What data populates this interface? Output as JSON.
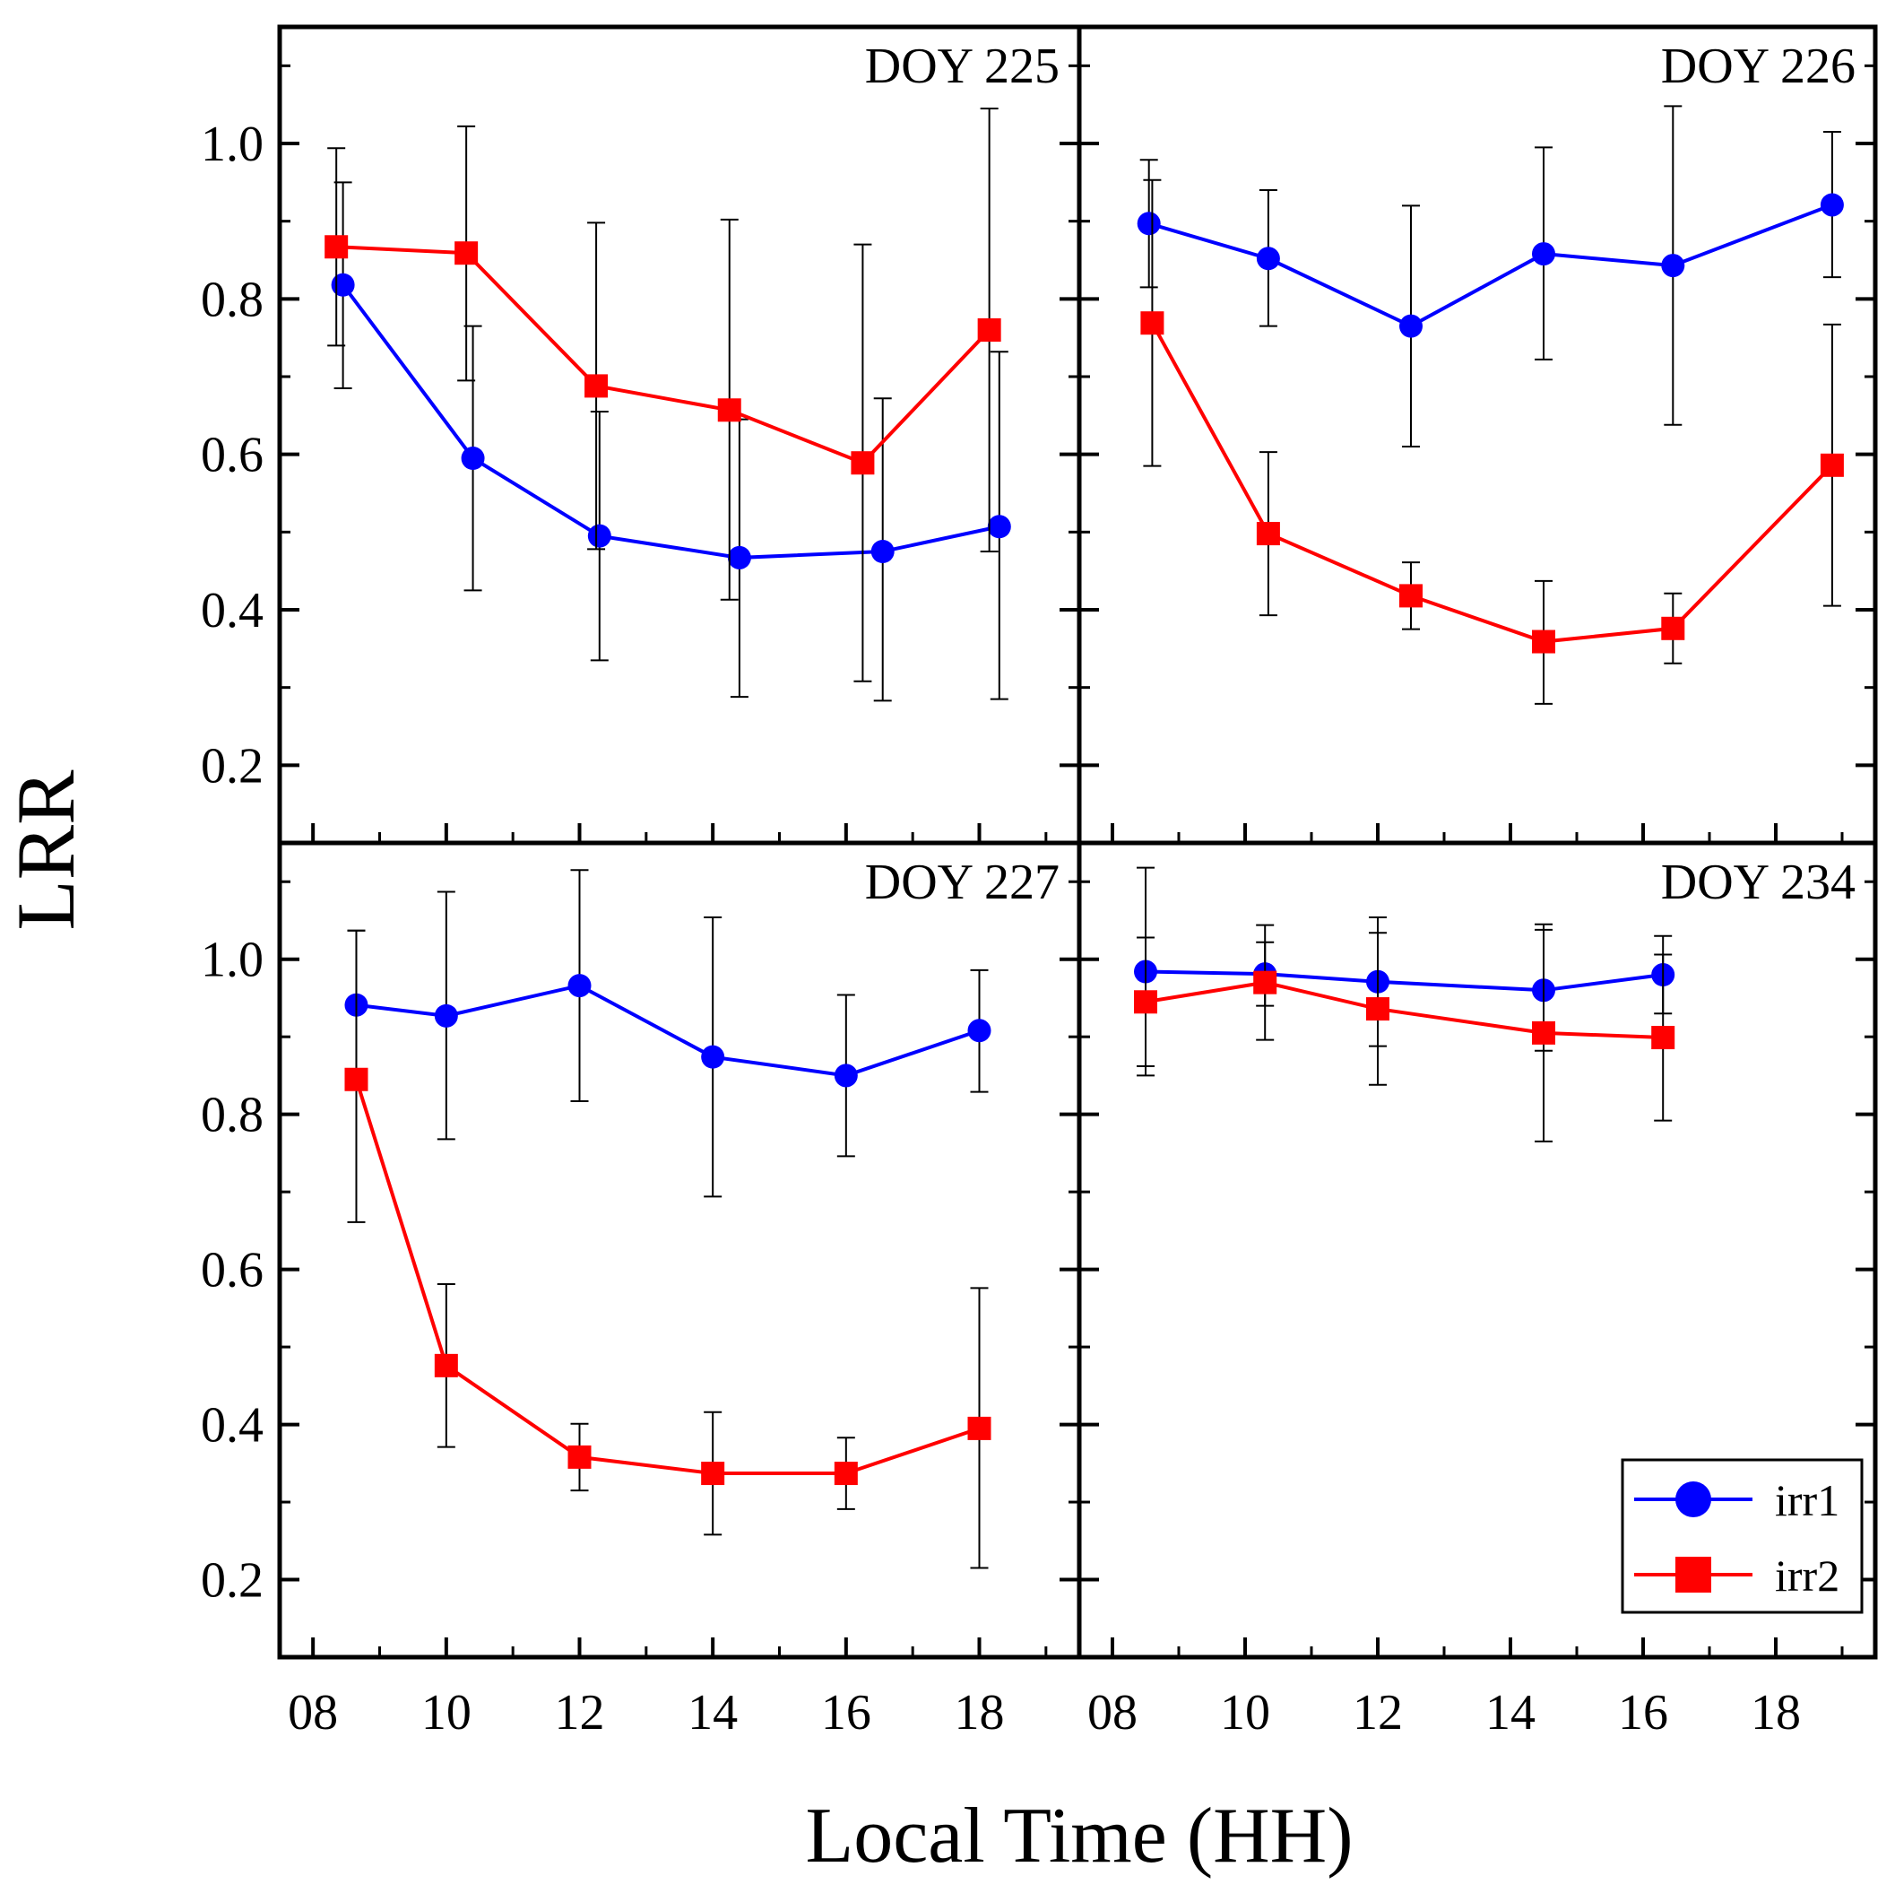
{
  "chart_data": {
    "type": "line",
    "ylabel": "LRR",
    "xlabel": "Local Time (HH)",
    "ylim": [
      0.1,
      1.15
    ],
    "xlim": [
      7.5,
      19.5
    ],
    "y_ticks": [
      {
        "v": 0.2,
        "label": "0.2"
      },
      {
        "v": 0.4,
        "label": "0.4"
      },
      {
        "v": 0.6,
        "label": "0.6"
      },
      {
        "v": 0.8,
        "label": "0.8"
      },
      {
        "v": 1.0,
        "label": "1.0"
      }
    ],
    "x_ticks": [
      {
        "v": 8,
        "label": "08"
      },
      {
        "v": 10,
        "label": "10"
      },
      {
        "v": 12,
        "label": "12"
      },
      {
        "v": 14,
        "label": "14"
      },
      {
        "v": 16,
        "label": "16"
      },
      {
        "v": 18,
        "label": "18"
      }
    ],
    "legend": {
      "position": "bottom-right of DOY 234 panel",
      "entries": [
        {
          "label": "irr1",
          "marker": "circle",
          "color": "#0000ff"
        },
        {
          "label": "irr2",
          "marker": "square",
          "color": "#ff0000"
        }
      ]
    },
    "panels": [
      {
        "title": "DOY 225",
        "series": [
          {
            "name": "irr1",
            "color": "#0000ff",
            "marker": "circle",
            "x": [
              8.45,
              10.4,
              12.3,
              14.4,
              16.55,
              18.3
            ],
            "y": [
              0.818,
              0.595,
              0.495,
              0.467,
              0.475,
              0.507
            ],
            "err_low": [
              0.685,
              0.425,
              0.335,
              0.288,
              0.283,
              0.285
            ],
            "err_high": [
              0.95,
              0.765,
              0.655,
              0.645,
              0.672,
              0.732
            ]
          },
          {
            "name": "irr2",
            "color": "#ff0000",
            "marker": "square",
            "x": [
              8.35,
              10.3,
              12.25,
              14.25,
              16.25,
              18.15
            ],
            "y": [
              0.867,
              0.859,
              0.688,
              0.657,
              0.589,
              0.76
            ],
            "err_low": [
              0.74,
              0.695,
              0.478,
              0.413,
              0.308,
              0.475
            ],
            "err_high": [
              0.994,
              1.022,
              0.898,
              0.902,
              0.87,
              1.045
            ]
          }
        ]
      },
      {
        "title": "DOY 226",
        "series": [
          {
            "name": "irr1",
            "color": "#0000ff",
            "marker": "circle",
            "x": [
              8.55,
              10.35,
              12.5,
              14.5,
              16.45,
              18.85
            ],
            "y": [
              0.897,
              0.852,
              0.765,
              0.858,
              0.843,
              0.921
            ],
            "err_low": [
              0.815,
              0.765,
              0.61,
              0.722,
              0.638,
              0.828
            ],
            "err_high": [
              0.979,
              0.94,
              0.92,
              0.995,
              1.048,
              1.015
            ]
          },
          {
            "name": "irr2",
            "color": "#ff0000",
            "marker": "square",
            "x": [
              8.6,
              10.35,
              12.5,
              14.5,
              16.45,
              18.85
            ],
            "y": [
              0.769,
              0.498,
              0.418,
              0.359,
              0.376,
              0.586
            ],
            "err_low": [
              0.585,
              0.393,
              0.375,
              0.279,
              0.331,
              0.405
            ],
            "err_high": [
              0.953,
              0.603,
              0.461,
              0.437,
              0.421,
              0.767
            ]
          }
        ]
      },
      {
        "title": "DOY 227",
        "series": [
          {
            "name": "irr1",
            "color": "#0000ff",
            "marker": "circle",
            "x": [
              8.65,
              10.0,
              12.0,
              14.0,
              16.0,
              18.0
            ],
            "y": [
              0.941,
              0.927,
              0.966,
              0.874,
              0.85,
              0.908
            ],
            "err_low": [
              0.845,
              0.768,
              0.817,
              0.694,
              0.746,
              0.829
            ],
            "err_high": [
              1.037,
              1.087,
              1.115,
              1.054,
              0.954,
              0.986
            ]
          },
          {
            "name": "irr2",
            "color": "#ff0000",
            "marker": "square",
            "x": [
              8.65,
              10.0,
              12.0,
              14.0,
              16.0,
              18.0
            ],
            "y": [
              0.845,
              0.476,
              0.358,
              0.337,
              0.337,
              0.395
            ],
            "err_low": [
              0.661,
              0.371,
              0.315,
              0.258,
              0.291,
              0.215
            ],
            "err_high": [
              1.037,
              0.581,
              0.401,
              0.416,
              0.383,
              0.576
            ]
          }
        ]
      },
      {
        "title": "DOY 234",
        "series": [
          {
            "name": "irr1",
            "color": "#0000ff",
            "marker": "circle",
            "x": [
              8.5,
              10.3,
              12.0,
              14.5,
              16.3
            ],
            "y": [
              0.984,
              0.981,
              0.971,
              0.96,
              0.98
            ],
            "err_low": [
              0.85,
              0.94,
              0.888,
              0.882,
              0.93
            ],
            "err_high": [
              1.118,
              1.022,
              1.054,
              1.038,
              1.03
            ]
          },
          {
            "name": "irr2",
            "color": "#ff0000",
            "marker": "square",
            "x": [
              8.5,
              10.3,
              12.0,
              14.5,
              16.3
            ],
            "y": [
              0.945,
              0.97,
              0.936,
              0.905,
              0.899
            ],
            "err_low": [
              0.862,
              0.896,
              0.838,
              0.765,
              0.792
            ],
            "err_high": [
              1.028,
              1.044,
              1.034,
              1.045,
              1.006
            ]
          }
        ]
      }
    ]
  }
}
